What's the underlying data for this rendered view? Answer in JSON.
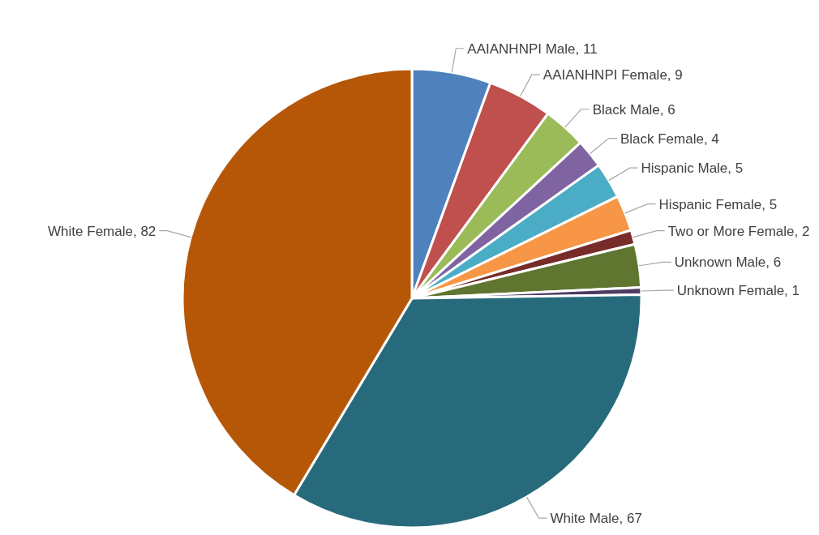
{
  "chart_data": {
    "type": "pie",
    "categories": [
      "AAIANHNPI Male",
      "AAIANHNPI Female",
      "Black Male",
      "Black Female",
      "Hispanic Male",
      "Hispanic Female",
      "Two or More Female",
      "Unknown Male",
      "Unknown Female",
      "White Male",
      "White Female"
    ],
    "values": [
      11,
      9,
      6,
      4,
      5,
      5,
      2,
      6,
      1,
      67,
      82
    ],
    "colors": [
      "#4f81bd",
      "#c0504d",
      "#9bbb59",
      "#8064a2",
      "#4bacc6",
      "#f79646",
      "#772c2a",
      "#5f7530",
      "#4d3b62",
      "#276a7c",
      "#b65708"
    ],
    "value_labels": [
      ", 11",
      ", 9",
      ", 6",
      ", 4",
      ", 5",
      ", 5",
      ", 2",
      ", 6",
      ", 1",
      ", 67",
      ", 82"
    ],
    "data_labels": true,
    "legend": false
  }
}
